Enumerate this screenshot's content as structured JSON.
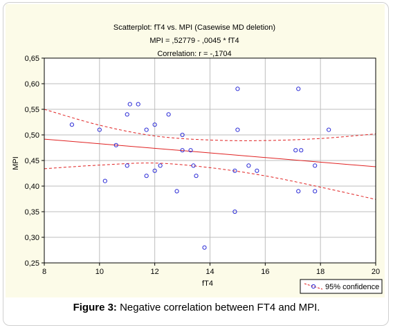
{
  "caption": {
    "label": "Figure 3:",
    "text": " Negative correlation between FT4 and MPI."
  },
  "chart_data": {
    "type": "scatter",
    "title": "Scatterplot: fT4 vs. MPI (Casewise MD deletion)",
    "subtitle_1": "MPI = ,52779 - ,0045  * fT4",
    "subtitle_2": "Correlation: r = -,1704",
    "xlabel": "fT4",
    "ylabel": "MPI",
    "xlim": [
      8,
      20
    ],
    "ylim": [
      0.25,
      0.65
    ],
    "xticks": [
      "8",
      "10",
      "12",
      "14",
      "16",
      "18",
      "20"
    ],
    "yticks": [
      "0,25",
      "0,30",
      "0,35",
      "0,40",
      "0,45",
      "0,50",
      "0,55",
      "0,60",
      "0,65"
    ],
    "grid": true,
    "legend": {
      "position": "bottom-right",
      "entries": [
        "95% confidence"
      ]
    },
    "regression": {
      "intercept": 0.52779,
      "slope": -0.0045
    },
    "confidence_band": {
      "upper": [
        [
          8,
          0.55
        ],
        [
          10,
          0.519
        ],
        [
          12,
          0.498
        ],
        [
          14,
          0.49
        ],
        [
          16,
          0.489
        ],
        [
          18,
          0.493
        ],
        [
          20,
          0.502
        ]
      ],
      "lower": [
        [
          8,
          0.434
        ],
        [
          10,
          0.441
        ],
        [
          12,
          0.445
        ],
        [
          14,
          0.436
        ],
        [
          16,
          0.42
        ],
        [
          18,
          0.398
        ],
        [
          20,
          0.374
        ]
      ]
    },
    "colors": {
      "points": "#2b2bd6",
      "lines": "#e02020",
      "panel": "#fcfbe8",
      "grid": "#bdbdbd"
    },
    "points": [
      [
        9.0,
        0.52
      ],
      [
        10.0,
        0.51
      ],
      [
        10.2,
        0.41
      ],
      [
        10.6,
        0.48
      ],
      [
        11.0,
        0.54
      ],
      [
        11.0,
        0.44
      ],
      [
        11.1,
        0.56
      ],
      [
        11.4,
        0.56
      ],
      [
        11.7,
        0.51
      ],
      [
        11.7,
        0.42
      ],
      [
        12.0,
        0.52
      ],
      [
        12.0,
        0.43
      ],
      [
        12.2,
        0.44
      ],
      [
        12.5,
        0.54
      ],
      [
        12.8,
        0.39
      ],
      [
        13.0,
        0.5
      ],
      [
        13.0,
        0.47
      ],
      [
        13.3,
        0.47
      ],
      [
        13.4,
        0.44
      ],
      [
        13.5,
        0.42
      ],
      [
        13.8,
        0.28
      ],
      [
        14.9,
        0.43
      ],
      [
        14.9,
        0.35
      ],
      [
        15.0,
        0.59
      ],
      [
        15.0,
        0.51
      ],
      [
        15.4,
        0.44
      ],
      [
        15.7,
        0.43
      ],
      [
        17.1,
        0.47
      ],
      [
        17.2,
        0.59
      ],
      [
        17.2,
        0.39
      ],
      [
        17.3,
        0.47
      ],
      [
        17.8,
        0.44
      ],
      [
        17.8,
        0.39
      ],
      [
        18.3,
        0.51
      ]
    ]
  }
}
